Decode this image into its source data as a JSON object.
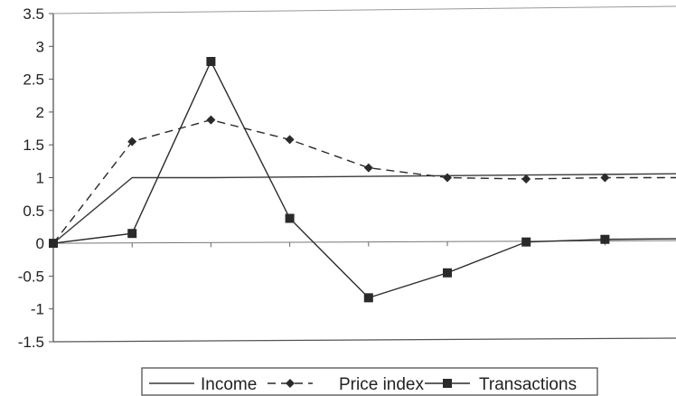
{
  "chart_data": {
    "type": "line",
    "x": [
      0,
      1,
      2,
      3,
      4,
      5,
      6,
      7,
      8
    ],
    "ylim": [
      -1.5,
      3.5
    ],
    "yticks": [
      "3.5",
      "3",
      "2.5",
      "2",
      "1.5",
      "1",
      "0.5",
      "0",
      "-0.5",
      "-1",
      "-1.5"
    ],
    "grid": false,
    "legend_position": "bottom",
    "series": [
      {
        "name": "Income",
        "style": "solid",
        "marker": "none",
        "color": "#3a3a3a",
        "values": [
          0,
          1,
          1,
          1.01,
          1.02,
          1.03,
          1.04,
          1.05,
          1.06
        ]
      },
      {
        "name": "Price index",
        "style": "dashed",
        "marker": "diamond",
        "color": "#2a2a2a",
        "values": [
          0,
          1.55,
          1.88,
          1.58,
          1.15,
          1.0,
          0.98,
          1.0,
          1.0
        ]
      },
      {
        "name": "Transactions",
        "style": "solid",
        "marker": "square",
        "color": "#2a2a2a",
        "values": [
          0,
          0.15,
          2.77,
          0.38,
          -0.83,
          -0.45,
          0.02,
          0.06,
          0.07
        ]
      }
    ]
  }
}
